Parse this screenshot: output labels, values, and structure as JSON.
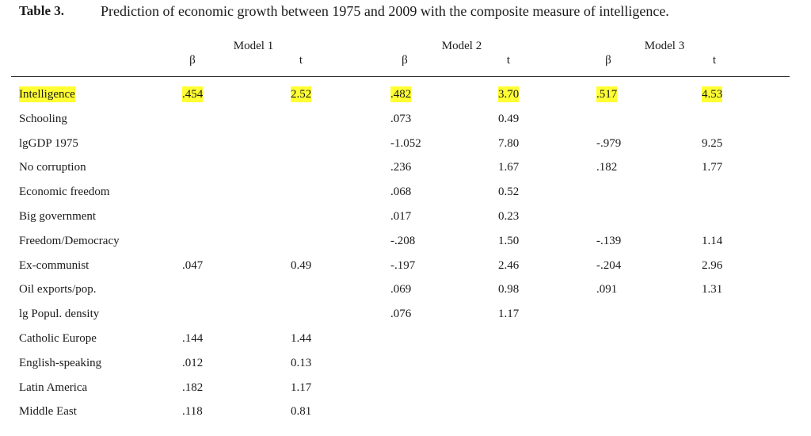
{
  "caption": {
    "label": "Table 3.",
    "text": "Prediction of economic growth between 1975 and 2009 with the composite measure of intelligence."
  },
  "header": {
    "models": [
      "Model 1",
      "Model 2",
      "Model 3"
    ],
    "subcols": [
      "β",
      "t",
      "β",
      "t",
      "β",
      "t"
    ]
  },
  "colors": {
    "highlight": "#ffff33",
    "text": "#1a1a1a"
  },
  "rows": [
    {
      "label": "Intelligence",
      "highlight": true,
      "values": [
        ".454",
        "2.52",
        ".482",
        "3.70",
        ".517",
        "4.53"
      ]
    },
    {
      "label": "Schooling",
      "highlight": false,
      "values": [
        "",
        "",
        ".073",
        "0.49",
        "",
        ""
      ]
    },
    {
      "label": "lgGDP 1975",
      "highlight": false,
      "values": [
        "",
        "",
        "-1.052",
        "7.80",
        "-.979",
        "9.25"
      ]
    },
    {
      "label": "No corruption",
      "highlight": false,
      "values": [
        "",
        "",
        ".236",
        "1.67",
        ".182",
        "1.77"
      ]
    },
    {
      "label": "Economic freedom",
      "highlight": false,
      "values": [
        "",
        "",
        ".068",
        "0.52",
        "",
        ""
      ]
    },
    {
      "label": "Big government",
      "highlight": false,
      "values": [
        "",
        "",
        ".017",
        "0.23",
        "",
        ""
      ]
    },
    {
      "label": "Freedom/Democracy",
      "highlight": false,
      "values": [
        "",
        "",
        "-.208",
        "1.50",
        "-.139",
        "1.14"
      ]
    },
    {
      "label": "Ex-communist",
      "highlight": false,
      "values": [
        ".047",
        "0.49",
        "-.197",
        "2.46",
        "-.204",
        "2.96"
      ]
    },
    {
      "label": "Oil exports/pop.",
      "highlight": false,
      "values": [
        "",
        "",
        ".069",
        "0.98",
        ".091",
        "1.31"
      ]
    },
    {
      "label": "lg Popul. density",
      "highlight": false,
      "values": [
        "",
        "",
        ".076",
        "1.17",
        "",
        ""
      ]
    },
    {
      "label": "Catholic Europe",
      "highlight": false,
      "values": [
        ".144",
        "1.44",
        "",
        "",
        "",
        ""
      ]
    },
    {
      "label": "English-speaking",
      "highlight": false,
      "values": [
        ".012",
        "0.13",
        "",
        "",
        "",
        ""
      ]
    },
    {
      "label": "Latin America",
      "highlight": false,
      "values": [
        ".182",
        "1.17",
        "",
        "",
        "",
        ""
      ]
    },
    {
      "label": "Middle East",
      "highlight": false,
      "values": [
        ".118",
        "0.81",
        "",
        "",
        "",
        ""
      ]
    }
  ]
}
